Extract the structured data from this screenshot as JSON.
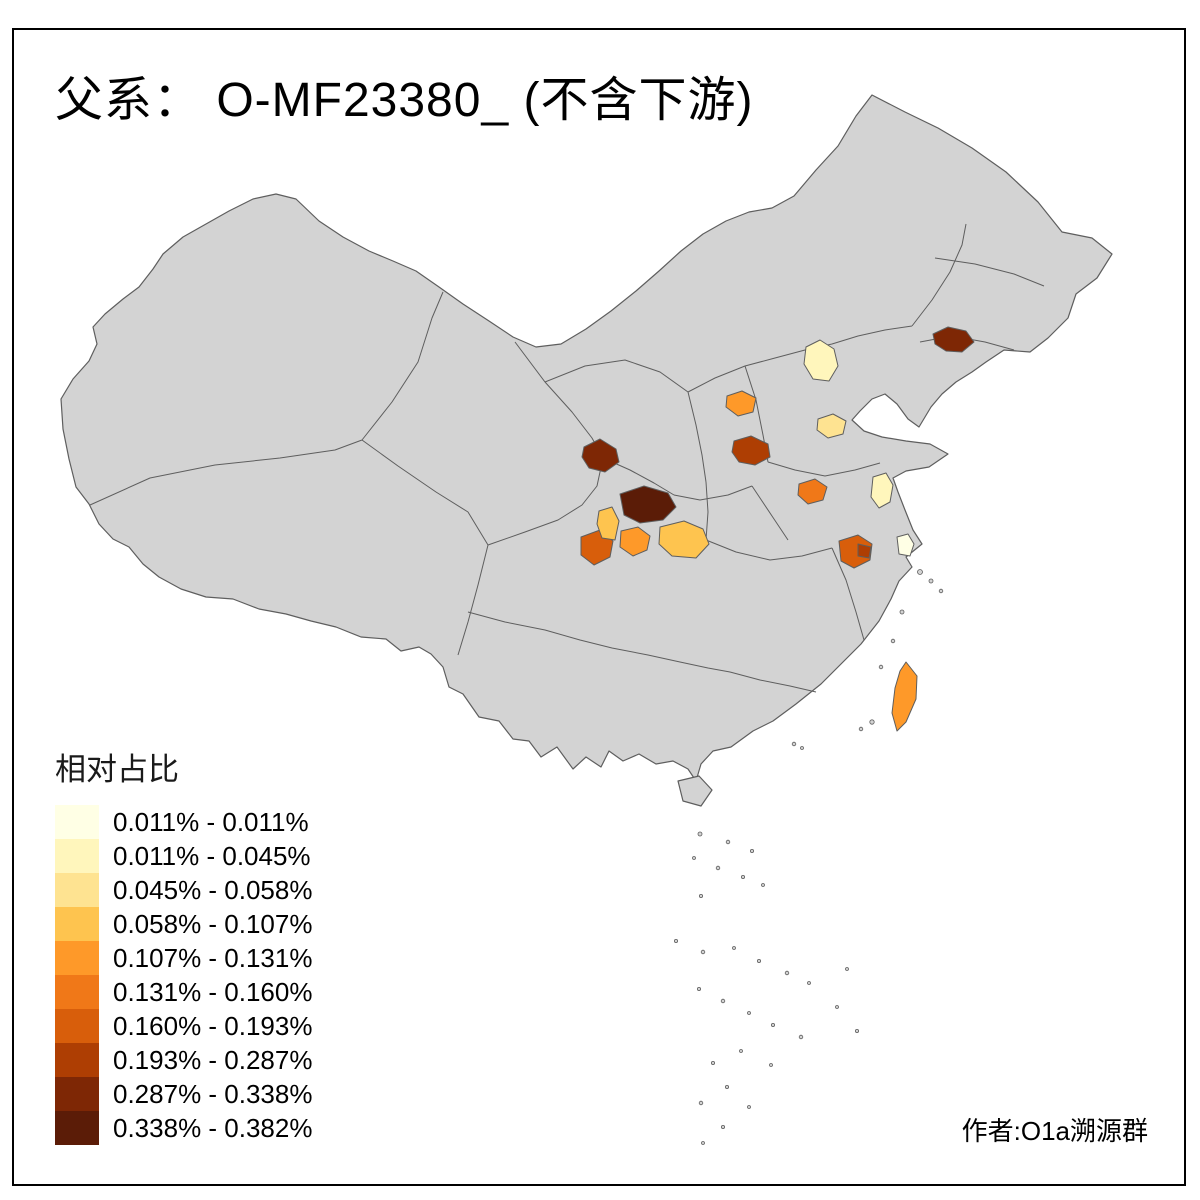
{
  "title": "父系： O-MF23380_ (不含下游)",
  "author": "作者:O1a溯源群",
  "legend": {
    "title": "相对占比",
    "items": [
      {
        "label": "0.011% - 0.011%",
        "color": "#FFFFE5"
      },
      {
        "label": "0.011% - 0.045%",
        "color": "#FFF6BC"
      },
      {
        "label": "0.045% - 0.058%",
        "color": "#FEE391"
      },
      {
        "label": "0.058% - 0.107%",
        "color": "#FEC44F"
      },
      {
        "label": "0.107% - 0.131%",
        "color": "#FE9929"
      },
      {
        "label": "0.131% - 0.160%",
        "color": "#F07818"
      },
      {
        "label": "0.160% - 0.193%",
        "color": "#D85E0B"
      },
      {
        "label": "0.193% - 0.287%",
        "color": "#AE3E03"
      },
      {
        "label": "0.287% - 0.338%",
        "color": "#7E2705"
      },
      {
        "label": "0.338% - 0.382%",
        "color": "#5B1C07"
      }
    ]
  },
  "map": {
    "land_color": "#D3D3D3",
    "boundary_color": "#5E5E5E",
    "sea_color": "#FFFFFF",
    "regions": [
      {
        "id": "r1",
        "level": 9
      },
      {
        "id": "r2",
        "level": 2
      },
      {
        "id": "r3",
        "level": 5
      },
      {
        "id": "r4",
        "level": 8
      },
      {
        "id": "r5",
        "level": 3
      },
      {
        "id": "r6",
        "level": 9
      },
      {
        "id": "r7",
        "level": 10
      },
      {
        "id": "r8",
        "level": 6
      },
      {
        "id": "r9",
        "level": 2
      },
      {
        "id": "r10",
        "level": 7
      },
      {
        "id": "r11",
        "level": 4
      },
      {
        "id": "r12",
        "level": 5
      },
      {
        "id": "r13",
        "level": 4
      },
      {
        "id": "r14",
        "level": 7
      },
      {
        "id": "r15",
        "level": 8
      },
      {
        "id": "r16",
        "level": 1
      },
      {
        "id": "r17",
        "level": 5
      }
    ]
  }
}
